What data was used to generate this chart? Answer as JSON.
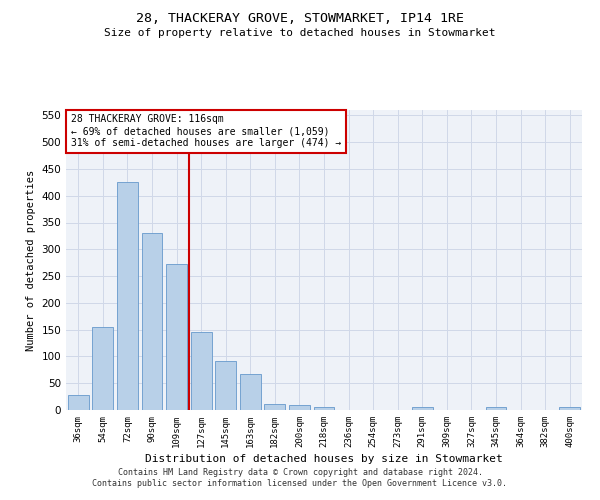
{
  "title": "28, THACKERAY GROVE, STOWMARKET, IP14 1RE",
  "subtitle": "Size of property relative to detached houses in Stowmarket",
  "xlabel": "Distribution of detached houses by size in Stowmarket",
  "ylabel": "Number of detached properties",
  "categories": [
    "36sqm",
    "54sqm",
    "72sqm",
    "90sqm",
    "109sqm",
    "127sqm",
    "145sqm",
    "163sqm",
    "182sqm",
    "200sqm",
    "218sqm",
    "236sqm",
    "254sqm",
    "273sqm",
    "291sqm",
    "309sqm",
    "327sqm",
    "345sqm",
    "364sqm",
    "382sqm",
    "400sqm"
  ],
  "values": [
    28,
    155,
    425,
    330,
    273,
    145,
    92,
    68,
    12,
    10,
    5,
    0,
    0,
    0,
    5,
    0,
    0,
    5,
    0,
    0,
    5
  ],
  "bar_color": "#b8d0e8",
  "bar_edge_color": "#6699cc",
  "annotation_line1": "28 THACKERAY GROVE: 116sqm",
  "annotation_line2": "← 69% of detached houses are smaller (1,059)",
  "annotation_line3": "31% of semi-detached houses are larger (474) →",
  "annotation_box_color": "#ffffff",
  "annotation_box_edge_color": "#cc0000",
  "ref_line_color": "#cc0000",
  "ylim": [
    0,
    560
  ],
  "yticks": [
    0,
    50,
    100,
    150,
    200,
    250,
    300,
    350,
    400,
    450,
    500,
    550
  ],
  "bg_color": "#eef2f8",
  "grid_color": "#d0d8e8",
  "footer1": "Contains HM Land Registry data © Crown copyright and database right 2024.",
  "footer2": "Contains public sector information licensed under the Open Government Licence v3.0."
}
